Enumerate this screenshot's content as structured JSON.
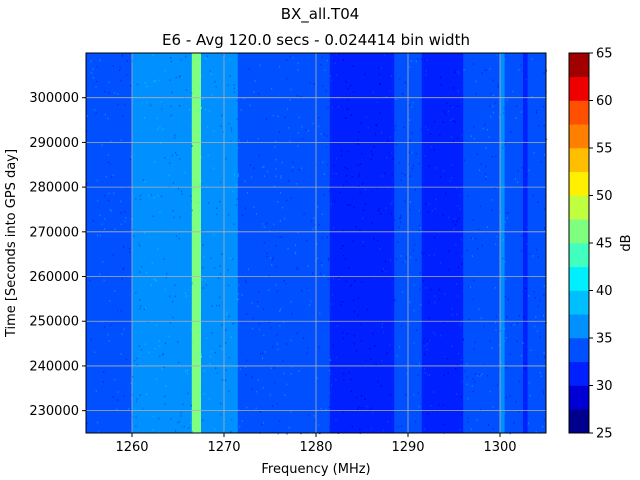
{
  "chart_data": {
    "type": "heatmap",
    "title": "BX_all.T04",
    "subtitle": "E6 - Avg 120.0 secs - 0.024414 bin width",
    "xlabel": "Frequency (MHz)",
    "ylabel": "Time [Seconds into GPS day]",
    "xlim": [
      1255,
      1305
    ],
    "ylim": [
      225000,
      310000
    ],
    "x_ticks": [
      1260,
      1270,
      1280,
      1290,
      1300
    ],
    "y_ticks": [
      230000,
      240000,
      250000,
      260000,
      270000,
      280000,
      290000,
      300000
    ],
    "grid": true,
    "colorbar": {
      "label": "dB",
      "ticks": [
        25,
        30,
        35,
        40,
        45,
        50,
        55,
        60,
        65
      ],
      "levels": [
        25,
        27.5,
        30,
        32.5,
        35,
        37.5,
        40,
        42.5,
        45,
        47.5,
        50,
        52.5,
        55,
        57.5,
        60,
        62.5,
        65
      ],
      "colors": [
        "#00008f",
        "#0000d4",
        "#0020ff",
        "#0050ff",
        "#0090ff",
        "#00bfff",
        "#00efff",
        "#40ffbf",
        "#7fff7f",
        "#bfff40",
        "#ffef00",
        "#ffbf00",
        "#ff8000",
        "#ff5000",
        "#ef0000",
        "#a00000"
      ]
    },
    "spectrum_profile": {
      "frequency_mhz": [
        1255,
        1257.5,
        1258.5,
        1260,
        1261,
        1262,
        1263,
        1264,
        1265.5,
        1266.5,
        1267.5,
        1269,
        1270.5,
        1271.5,
        1275,
        1280,
        1281.5,
        1282.5,
        1285,
        1287,
        1288.5,
        1290,
        1291.5,
        1293,
        1294.5,
        1296,
        1299.5,
        1300,
        1300.5,
        1301.5,
        1302.5,
        1303,
        1305
      ],
      "level_db": [
        34,
        34,
        33.5,
        35,
        36.5,
        37,
        36,
        35,
        36,
        45,
        36,
        35.5,
        35.5,
        34,
        34,
        33.5,
        32,
        30,
        30.5,
        31.5,
        33,
        33.5,
        31.5,
        30.5,
        31.5,
        33.5,
        33.5,
        36,
        33.5,
        33.5,
        32,
        34,
        34
      ]
    }
  }
}
